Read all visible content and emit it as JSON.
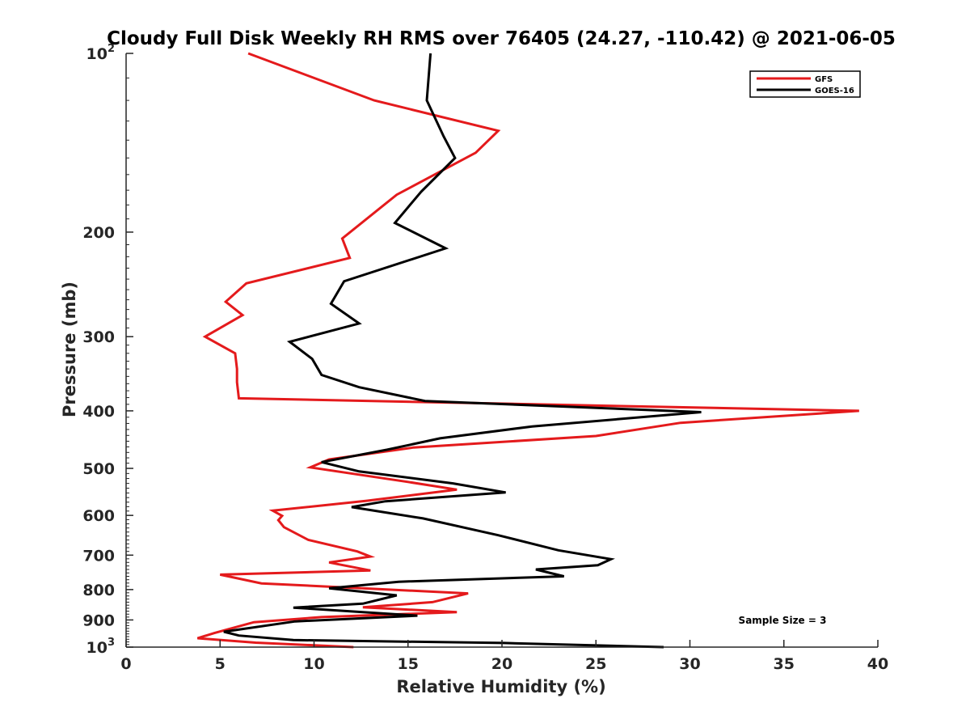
{
  "chart_data": {
    "type": "line",
    "title": "Cloudy Full Disk Weekly RH RMS over 76405 (24.27, -110.42) @ 2021-06-05",
    "xlabel": "Relative Humidity (%)",
    "ylabel": "Pressure (mb)",
    "xlim": [
      0,
      40
    ],
    "ylim": [
      100,
      1000
    ],
    "y_scale": "log",
    "y_reversed": true,
    "x_ticks": [
      "0",
      "5",
      "10",
      "15",
      "20",
      "25",
      "30",
      "35",
      "40"
    ],
    "y_ticks": [
      {
        "value": 100,
        "base": "10",
        "exp": "2"
      },
      {
        "value": 200,
        "label": "200"
      },
      {
        "value": 300,
        "label": "300"
      },
      {
        "value": 400,
        "label": "400"
      },
      {
        "value": 500,
        "label": "500"
      },
      {
        "value": 600,
        "label": "600"
      },
      {
        "value": 700,
        "label": "700"
      },
      {
        "value": 800,
        "label": "800"
      },
      {
        "value": 900,
        "label": "900"
      },
      {
        "value": 1000,
        "base": "10",
        "exp": "3"
      }
    ],
    "grid": false,
    "legend_position": "top-right",
    "annotation": "Sample Size = 3",
    "series": [
      {
        "name": "GFS",
        "color": "#e41a1c",
        "points": [
          [
            6.5,
            100
          ],
          [
            13.2,
            120
          ],
          [
            19.8,
            135
          ],
          [
            18.6,
            147
          ],
          [
            14.4,
            173
          ],
          [
            11.5,
            205
          ],
          [
            11.9,
            221
          ],
          [
            6.4,
            244
          ],
          [
            5.3,
            262
          ],
          [
            6.2,
            276
          ],
          [
            4.2,
            300
          ],
          [
            5.8,
            320
          ],
          [
            5.9,
            340
          ],
          [
            5.9,
            358
          ],
          [
            6.0,
            381
          ],
          [
            39.0,
            400
          ],
          [
            29.5,
            419
          ],
          [
            25.0,
            441
          ],
          [
            15.3,
            461
          ],
          [
            10.8,
            483
          ],
          [
            9.8,
            498
          ],
          [
            15.0,
            527
          ],
          [
            17.6,
            543
          ],
          [
            12.8,
            567
          ],
          [
            7.8,
            589
          ],
          [
            8.3,
            601
          ],
          [
            8.1,
            611
          ],
          [
            8.4,
            628
          ],
          [
            9.7,
            660
          ],
          [
            12.3,
            690
          ],
          [
            13.0,
            704
          ],
          [
            10.8,
            720
          ],
          [
            13.0,
            743
          ],
          [
            5.0,
            755
          ],
          [
            7.2,
            781
          ],
          [
            18.2,
            812
          ],
          [
            16.3,
            840
          ],
          [
            12.6,
            857
          ],
          [
            17.6,
            873
          ],
          [
            10.4,
            890
          ],
          [
            6.8,
            908
          ],
          [
            4.7,
            947
          ],
          [
            3.8,
            966
          ],
          [
            6.9,
            983
          ],
          [
            12.1,
            1000
          ]
        ]
      },
      {
        "name": "GOES-16",
        "color": "#000000",
        "points": [
          [
            16.2,
            100
          ],
          [
            16.0,
            120
          ],
          [
            16.9,
            138
          ],
          [
            17.5,
            150
          ],
          [
            15.7,
            171
          ],
          [
            14.3,
            193
          ],
          [
            17.0,
            213
          ],
          [
            11.6,
            242
          ],
          [
            10.9,
            264
          ],
          [
            12.4,
            285
          ],
          [
            8.7,
            306
          ],
          [
            9.9,
            327
          ],
          [
            10.4,
            348
          ],
          [
            12.4,
            365
          ],
          [
            15.9,
            385
          ],
          [
            30.6,
            402
          ],
          [
            21.6,
            425
          ],
          [
            16.7,
            445
          ],
          [
            13.9,
            465
          ],
          [
            10.4,
            488
          ],
          [
            12.4,
            506
          ],
          [
            17.4,
            530
          ],
          [
            20.2,
            549
          ],
          [
            13.8,
            568
          ],
          [
            12.0,
            581
          ],
          [
            15.8,
            607
          ],
          [
            19.8,
            648
          ],
          [
            23.0,
            687
          ],
          [
            25.8,
            711
          ],
          [
            25.1,
            728
          ],
          [
            21.8,
            740
          ],
          [
            23.3,
            760
          ],
          [
            14.5,
            776
          ],
          [
            10.8,
            796
          ],
          [
            14.4,
            818
          ],
          [
            12.6,
            845
          ],
          [
            8.9,
            858
          ],
          [
            15.5,
            885
          ],
          [
            9.0,
            905
          ],
          [
            5.2,
            942
          ],
          [
            6.0,
            956
          ],
          [
            8.9,
            973
          ],
          [
            20.1,
            984
          ],
          [
            28.6,
            1000
          ]
        ]
      }
    ]
  }
}
